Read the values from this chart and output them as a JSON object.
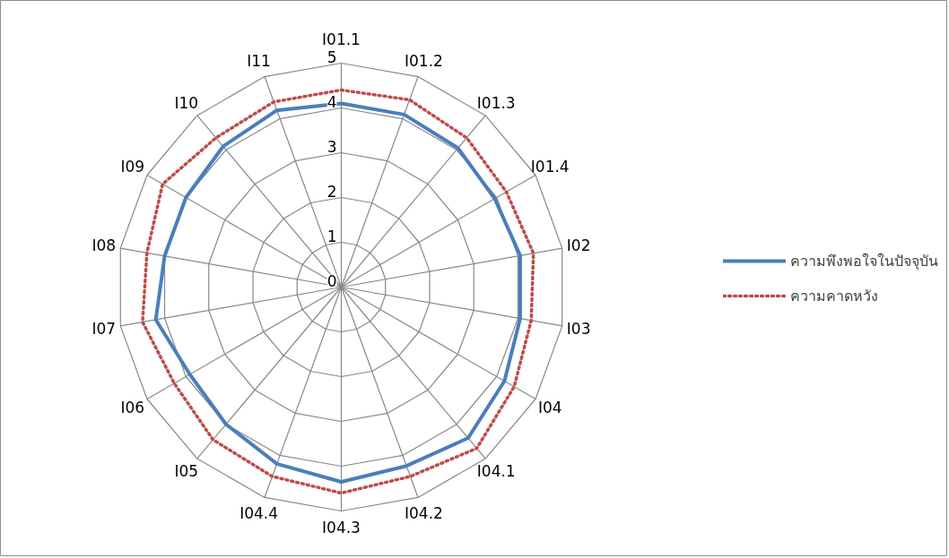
{
  "chart_data": {
    "type": "radar",
    "categories": [
      "I01.1",
      "I01.2",
      "I01.3",
      "I01.4",
      "I02",
      "I03",
      "I04",
      "I04.1",
      "I04.2",
      "I04.3",
      "I04.4",
      "I05",
      "I06",
      "I07",
      "I08",
      "I09",
      "I10",
      "I11"
    ],
    "ylim": [
      0,
      5
    ],
    "yticks": [
      0,
      1,
      2,
      3,
      4,
      5
    ],
    "grid": true,
    "legend": "right",
    "series": [
      {
        "name": "ความพึงพอใจในปัจจุบัน",
        "color": "#4a7ebb",
        "line_style": "solid",
        "values": [
          4.1,
          4.1,
          4.05,
          3.95,
          4.05,
          4.05,
          4.2,
          4.4,
          4.25,
          4.35,
          4.2,
          4.0,
          3.9,
          4.2,
          4.0,
          4.0,
          4.1,
          4.2
        ]
      },
      {
        "name": "ความคาดหวัง",
        "color": "#be4b48",
        "line_style": "dotted",
        "values": [
          4.4,
          4.45,
          4.35,
          4.25,
          4.35,
          4.3,
          4.45,
          4.7,
          4.5,
          4.6,
          4.5,
          4.45,
          4.3,
          4.5,
          4.4,
          4.6,
          4.35,
          4.4
        ]
      }
    ]
  }
}
